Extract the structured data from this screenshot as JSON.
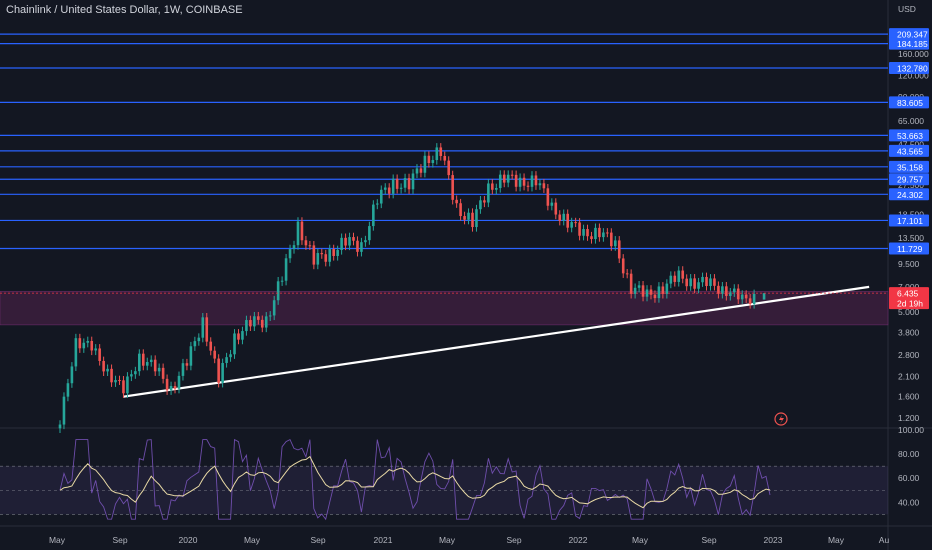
{
  "header": {
    "title": "Chainlink / United States Dollar, 1W, COINBASE"
  },
  "price_axis": {
    "currency": "USD",
    "ticks": [
      "160.000",
      "120.000",
      "90.000",
      "65.000",
      "47.500",
      "27.500",
      "18.500",
      "13.500",
      "9.500",
      "7.000",
      "5.000",
      "3.800",
      "2.800",
      "2.100",
      "1.600",
      "1.200"
    ]
  },
  "horizontal_levels": [
    {
      "value": "209.347",
      "color": "#2962ff"
    },
    {
      "value": "184.185",
      "color": "#2962ff"
    },
    {
      "value": "132.780",
      "color": "#2962ff"
    },
    {
      "value": "83.605",
      "color": "#2962ff"
    },
    {
      "value": "53.663",
      "color": "#2962ff"
    },
    {
      "value": "43.565",
      "color": "#2962ff"
    },
    {
      "value": "35.158",
      "color": "#2962ff"
    },
    {
      "value": "29.757",
      "color": "#2962ff"
    },
    {
      "value": "24.302",
      "color": "#2962ff"
    },
    {
      "value": "17.101",
      "color": "#2962ff"
    },
    {
      "value": "11.729",
      "color": "#2962ff"
    }
  ],
  "current_price": {
    "value": "6.435",
    "countdown": "2d 19h",
    "color": "#f23645"
  },
  "rsi_axis": {
    "ticks": [
      "100.00",
      "80.00",
      "60.00",
      "40.00"
    ]
  },
  "time_axis": {
    "labels": [
      "May",
      "Sep",
      "2020",
      "May",
      "Sep",
      "2021",
      "May",
      "Sep",
      "2022",
      "May",
      "Sep",
      "2023",
      "May",
      "Au"
    ]
  },
  "colors": {
    "up": "#26a69a",
    "down": "#ef5350",
    "level": "#2962ff",
    "zone": "#3c1f3d",
    "trendline": "#ffffff",
    "rsi": "#7e57c2",
    "rsi_ma": "#e8d9a5"
  },
  "chart_data": {
    "type": "candlestick",
    "symbol": "LINK/USD",
    "interval": "1W",
    "y_scale": "log",
    "ylim": [
      1.05,
      260
    ],
    "support_zone": [
      4.2,
      6.6
    ],
    "trendline": [
      {
        "date": "2019-09",
        "price": 1.6
      },
      {
        "date": "2023-08",
        "price": 7.0
      }
    ],
    "candles_approx_closes": [
      {
        "date": "2019-05",
        "close": 1.1
      },
      {
        "date": "2019-06",
        "close": 3.5
      },
      {
        "date": "2019-07",
        "close": 3.0
      },
      {
        "date": "2019-08",
        "close": 2.3
      },
      {
        "date": "2019-09",
        "close": 1.7
      },
      {
        "date": "2019-10",
        "close": 2.8
      },
      {
        "date": "2019-11",
        "close": 2.3
      },
      {
        "date": "2019-12",
        "close": 1.8
      },
      {
        "date": "2020-01",
        "close": 2.5
      },
      {
        "date": "2020-02",
        "close": 4.5
      },
      {
        "date": "2020-03",
        "close": 2.0
      },
      {
        "date": "2020-04",
        "close": 3.6
      },
      {
        "date": "2020-05",
        "close": 4.3
      },
      {
        "date": "2020-06",
        "close": 4.5
      },
      {
        "date": "2020-07",
        "close": 8.0
      },
      {
        "date": "2020-08",
        "close": 16.0
      },
      {
        "date": "2020-09",
        "close": 10.0
      },
      {
        "date": "2020-10",
        "close": 11.0
      },
      {
        "date": "2020-11",
        "close": 13.0
      },
      {
        "date": "2020-12",
        "close": 12.0
      },
      {
        "date": "2021-01",
        "close": 23.0
      },
      {
        "date": "2021-02",
        "close": 28.0
      },
      {
        "date": "2021-03",
        "close": 28.0
      },
      {
        "date": "2021-04",
        "close": 38.0
      },
      {
        "date": "2021-05",
        "close": 44.0
      },
      {
        "date": "2021-06",
        "close": 20.0
      },
      {
        "date": "2021-07",
        "close": 17.0
      },
      {
        "date": "2021-08",
        "close": 26.0
      },
      {
        "date": "2021-09",
        "close": 31.0
      },
      {
        "date": "2021-10",
        "close": 28.0
      },
      {
        "date": "2021-11",
        "close": 30.0
      },
      {
        "date": "2021-12",
        "close": 20.0
      },
      {
        "date": "2022-01",
        "close": 17.0
      },
      {
        "date": "2022-02",
        "close": 14.0
      },
      {
        "date": "2022-03",
        "close": 15.0
      },
      {
        "date": "2022-04",
        "close": 12.0
      },
      {
        "date": "2022-05",
        "close": 7.0
      },
      {
        "date": "2022-06",
        "close": 6.2
      },
      {
        "date": "2022-07",
        "close": 7.0
      },
      {
        "date": "2022-08",
        "close": 8.0
      },
      {
        "date": "2022-09",
        "close": 7.5
      },
      {
        "date": "2022-10",
        "close": 7.2
      },
      {
        "date": "2022-11",
        "close": 6.8
      },
      {
        "date": "2022-12",
        "close": 5.8
      },
      {
        "date": "2023-01",
        "close": 6.435
      }
    ],
    "rsi_ylim": [
      22,
      100
    ]
  }
}
